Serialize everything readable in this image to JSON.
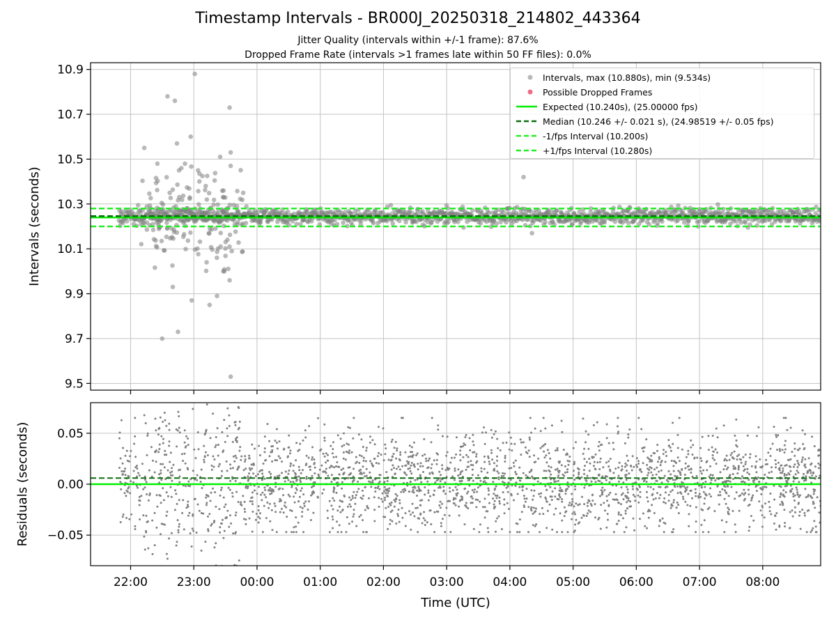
{
  "title": "Timestamp Intervals - BR000J_20250318_214802_443364",
  "subtitle_lines": [
    "Jitter Quality (intervals within +/-1 frame): 87.6%",
    "Dropped Frame Rate (intervals >1 frames late within 50 FF files): 0.0%"
  ],
  "colors": {
    "points": "#808080",
    "dropped": "#f0506e",
    "expected": "#00ee00",
    "median": "#0a6e0a",
    "interval_lines": "#22ee22",
    "grid": "#b0b0b0"
  },
  "legend": {
    "intervals": "Intervals, max (10.880s), min (9.534s)",
    "dropped": "Possible Dropped Frames",
    "expected": "Expected (10.240s), (25.00000 fps)",
    "median": "Median (10.246 +/- 0.021 s), (24.98519 +/- 0.05 fps)",
    "minus": "-1/fps Interval (10.200s)",
    "plus": "+1/fps Interval (10.280s)"
  },
  "chart_data": [
    {
      "type": "scatter",
      "ylabel": "Intervals (seconds)",
      "xlim": [
        "21:22",
        "08:55"
      ],
      "ylim": [
        9.47,
        10.93
      ],
      "y_ticks": [
        "9.5",
        "9.7",
        "9.9",
        "10.1",
        "10.3",
        "10.5",
        "10.7",
        "10.9"
      ],
      "x_range": [
        "21:49",
        "08:55"
      ],
      "expected": 10.24,
      "median": 10.246,
      "minus_interval": 10.2,
      "plus_interval": 10.28,
      "grid": true,
      "legend_position": "top-right",
      "outliers": [
        {
          "x": "22:35",
          "y": 10.78
        },
        {
          "x": "22:42",
          "y": 10.76
        },
        {
          "x": "22:13",
          "y": 10.55
        },
        {
          "x": "22:44",
          "y": 10.57
        },
        {
          "x": "22:46",
          "y": 10.45
        },
        {
          "x": "22:57",
          "y": 10.6
        },
        {
          "x": "23:01",
          "y": 10.88
        },
        {
          "x": "23:34",
          "y": 10.73
        },
        {
          "x": "23:35",
          "y": 10.53
        },
        {
          "x": "23:35",
          "y": 10.47
        },
        {
          "x": "23:04",
          "y": 10.45
        },
        {
          "x": "23:25",
          "y": 10.51
        },
        {
          "x": "22:30",
          "y": 9.7
        },
        {
          "x": "22:45",
          "y": 9.73
        },
        {
          "x": "22:40",
          "y": 9.93
        },
        {
          "x": "22:58",
          "y": 9.87
        },
        {
          "x": "23:15",
          "y": 9.85
        },
        {
          "x": "23:22",
          "y": 9.89
        },
        {
          "x": "23:34",
          "y": 9.96
        },
        {
          "x": "23:35",
          "y": 9.53
        },
        {
          "x": "23:29",
          "y": 10.0
        },
        {
          "x": "23:28",
          "y": 10.0
        },
        {
          "x": "04:13",
          "y": 10.42
        },
        {
          "x": "04:21",
          "y": 10.17
        }
      ]
    },
    {
      "type": "scatter",
      "xlabel": "Time (UTC)",
      "ylabel": "Residuals (seconds)",
      "xlim": [
        "21:22",
        "08:55"
      ],
      "ylim": [
        -0.08,
        0.08
      ],
      "y_ticks": [
        "−0.05",
        "0.00",
        "0.05"
      ],
      "x_ticks": [
        "22:00",
        "23:00",
        "00:00",
        "01:00",
        "02:00",
        "03:00",
        "04:00",
        "05:00",
        "06:00",
        "07:00",
        "08:00"
      ],
      "expected_residual": 0.0,
      "median_residual": 0.006,
      "grid": true
    }
  ]
}
